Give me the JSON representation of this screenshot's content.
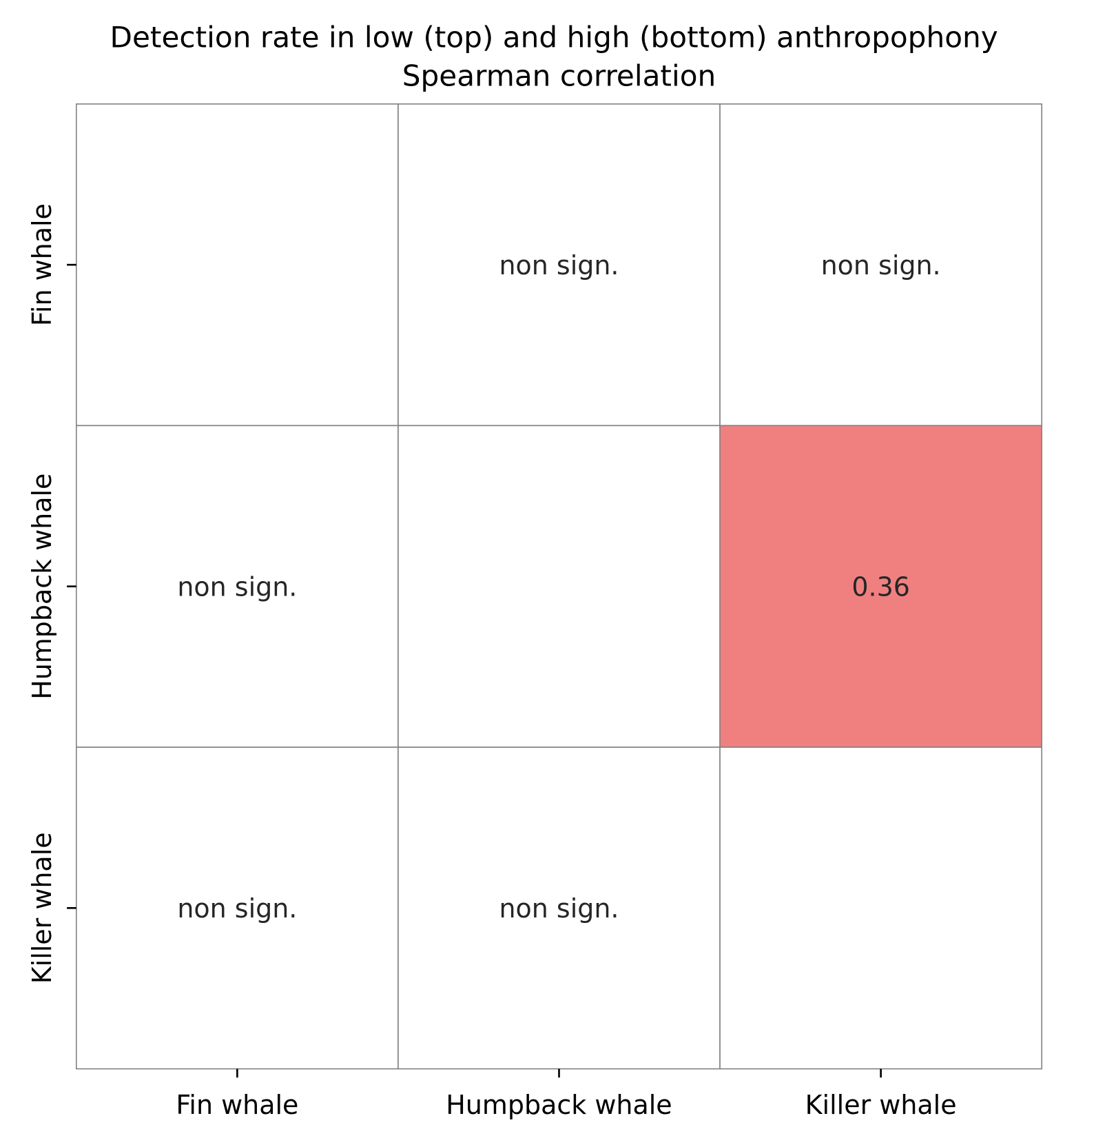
{
  "chart_data": {
    "type": "heatmap",
    "title": "Detection rate in low (top) and high (bottom) anthropophony",
    "subtitle": "Spearman correlation",
    "x_categories": [
      "Fin whale",
      "Humpback whale",
      "Killer whale"
    ],
    "y_categories": [
      "Fin whale",
      "Humpback whale",
      "Killer whale"
    ],
    "cells": [
      [
        "",
        "non sign.",
        "non sign."
      ],
      [
        "non sign.",
        "",
        "0.36"
      ],
      [
        "non sign.",
        "non sign.",
        ""
      ]
    ],
    "values": [
      [
        null,
        null,
        null
      ],
      [
        null,
        null,
        0.36
      ],
      [
        null,
        null,
        null
      ]
    ],
    "colors": {
      "positive": "#f08080",
      "empty": "#ffffff",
      "grid": "#808080",
      "text": "#262626"
    }
  }
}
